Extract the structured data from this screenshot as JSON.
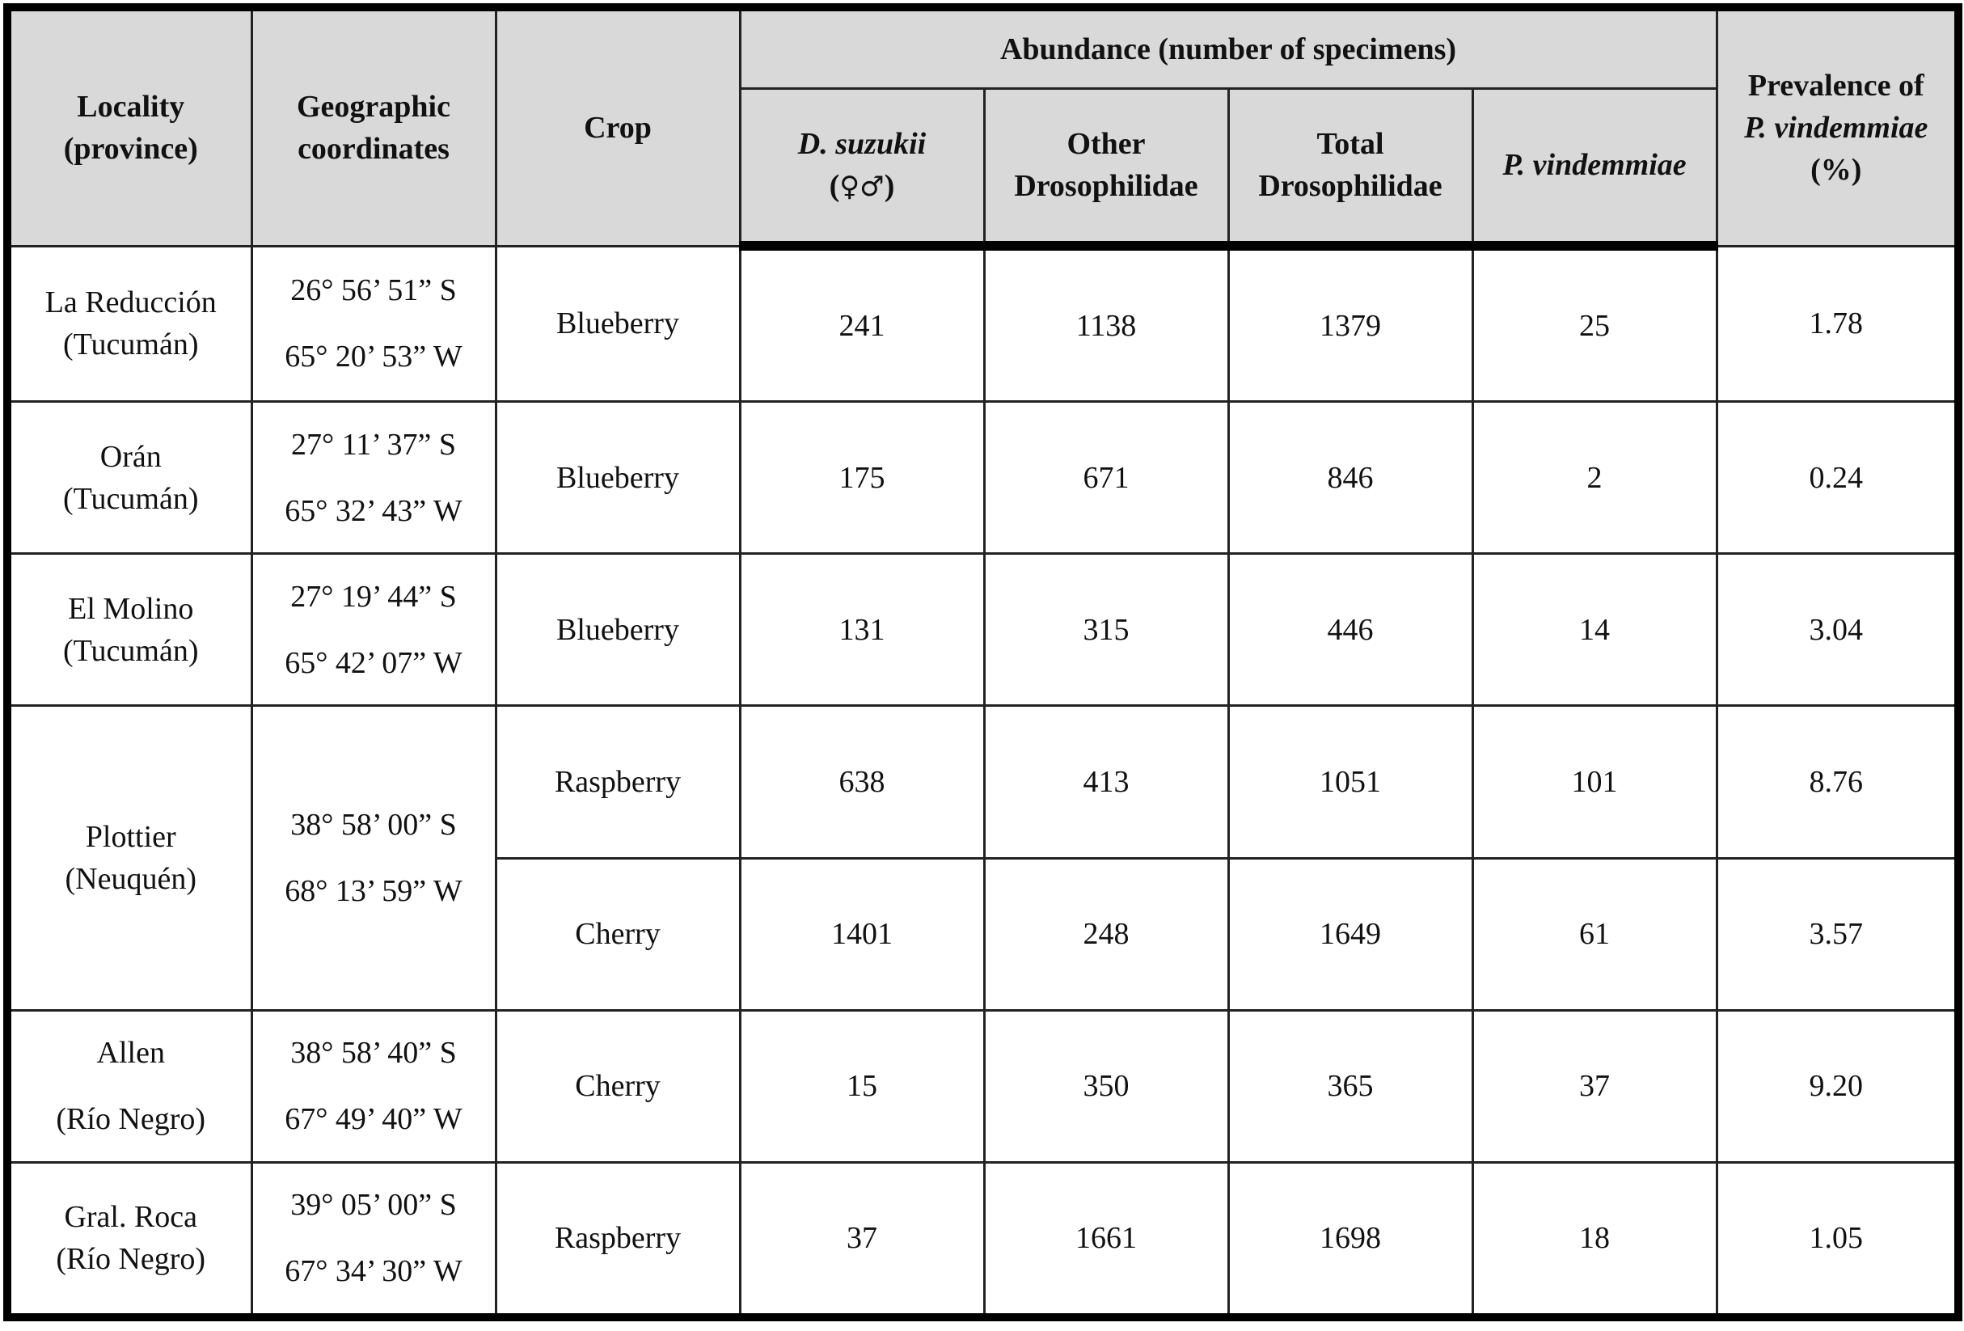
{
  "header": {
    "locality": [
      "Locality",
      "(province)"
    ],
    "coords": [
      "Geographic",
      "coordinates"
    ],
    "crop": "Crop",
    "abundance": "Abundance (number of specimens)",
    "dsuzukii": "D. suzukii",
    "dsuzukii_sym_open": "(",
    "dsuzukii_sym": "♀♂",
    "dsuzukii_sym_close": ")",
    "other": [
      "Other",
      "Drosophilidae"
    ],
    "total": [
      "Total",
      "Drosophilidae"
    ],
    "pvind": "P. vindemmiae",
    "prevalence_1": "Prevalence of",
    "prevalence_2": "P. vindemmiae",
    "prevalence_3": "(%)"
  },
  "rows": [
    {
      "loc": [
        "La Reducción",
        "(Tucumán)"
      ],
      "lat": "26° 56’ 51” S",
      "lon": "65° 20’ 53” W",
      "crop": "Blueberry",
      "ds": "241",
      "other": "1138",
      "total": "1379",
      "pv": "25",
      "prev": "1.78"
    },
    {
      "loc": [
        "Orán",
        "(Tucumán)"
      ],
      "lat": "27° 11’ 37” S",
      "lon": "65° 32’ 43” W",
      "crop": "Blueberry",
      "ds": "175",
      "other": "671",
      "total": "846",
      "pv": "2",
      "prev": "0.24"
    },
    {
      "loc": [
        "El Molino",
        "(Tucumán)"
      ],
      "lat": "27° 19’ 44” S",
      "lon": "65° 42’ 07” W",
      "crop": "Blueberry",
      "ds": "131",
      "other": "315",
      "total": "446",
      "pv": "14",
      "prev": "3.04"
    },
    {
      "loc": [
        "Plottier",
        "(Neuquén)"
      ],
      "lat": "38° 58’ 00” S",
      "lon": "68° 13’ 59” W",
      "crop": "Raspberry",
      "ds": "638",
      "other": "413",
      "total": "1051",
      "pv": "101",
      "prev": "8.76"
    },
    {
      "crop": "Cherry",
      "ds": "1401",
      "other": "248",
      "total": "1649",
      "pv": "61",
      "prev": "3.57"
    },
    {
      "loc": [
        "Allen",
        "(Río Negro)"
      ],
      "lat": "38° 58’ 40” S",
      "lon": "67° 49’ 40” W",
      "crop": "Cherry",
      "ds": "15",
      "other": "350",
      "total": "365",
      "pv": "37",
      "prev": "9.20"
    },
    {
      "loc": [
        "Gral. Roca",
        "(Río Negro)"
      ],
      "lat": "39° 05’ 00” S",
      "lon": "67° 34’ 30” W",
      "crop": "Raspberry",
      "ds": "37",
      "other": "1661",
      "total": "1698",
      "pv": "18",
      "prev": "1.05"
    }
  ]
}
